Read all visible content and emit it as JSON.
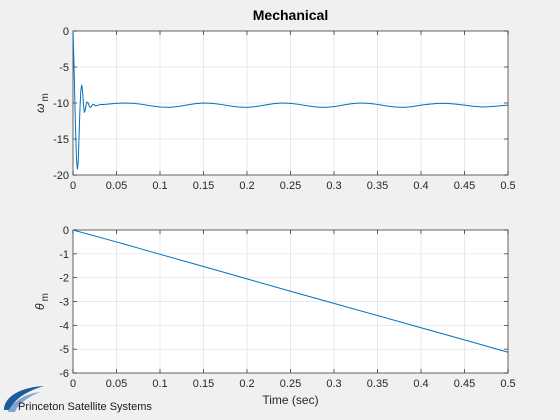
{
  "figure": {
    "background": "#f0f0f0",
    "axes_background": "#ffffff",
    "line_color": "#0072bd",
    "grid_color": "#e0e0e0",
    "logo_text": "Princeton Satellite Systems",
    "logo_color": "#1d5b99"
  },
  "chart_data": [
    {
      "type": "line",
      "title": "Mechanical",
      "xlabel": "",
      "ylabel": "ω",
      "ylabel_sub": "m",
      "xlim": [
        0,
        0.5
      ],
      "ylim": [
        -20,
        0
      ],
      "xticks": [
        0,
        0.05,
        0.1,
        0.15,
        0.2,
        0.25,
        0.3,
        0.35,
        0.4,
        0.45,
        0.5
      ],
      "xtick_labels": [
        "0",
        "0.05",
        "0.1",
        "0.15",
        "0.2",
        "0.25",
        "0.3",
        "0.35",
        "0.4",
        "0.45",
        "0.5"
      ],
      "yticks": [
        0,
        -5,
        -10,
        -15,
        -20
      ],
      "ytick_labels": [
        "0",
        "-5",
        "-10",
        "-15",
        "-20"
      ],
      "grid": true,
      "series": [
        {
          "x": [
            0,
            0.001,
            0.002,
            0.003,
            0.004,
            0.005,
            0.006,
            0.007,
            0.008,
            0.009,
            0.01,
            0.011,
            0.012,
            0.013,
            0.014,
            0.015,
            0.016,
            0.017,
            0.018,
            0.019,
            0.02,
            0.021,
            0.022,
            0.023,
            0.024,
            0.025,
            0.026,
            0.028,
            0.03,
            0.033,
            0.036,
            0.04,
            0.05,
            0.06,
            0.07,
            0.08,
            0.09,
            0.1,
            0.11,
            0.12,
            0.13,
            0.14,
            0.15,
            0.16,
            0.17,
            0.18,
            0.19,
            0.2,
            0.21,
            0.22,
            0.23,
            0.24,
            0.25,
            0.26,
            0.27,
            0.28,
            0.29,
            0.3,
            0.31,
            0.32,
            0.33,
            0.34,
            0.35,
            0.36,
            0.37,
            0.38,
            0.39,
            0.4,
            0.41,
            0.42,
            0.43,
            0.44,
            0.45,
            0.46,
            0.47,
            0.48,
            0.49,
            0.5
          ],
          "y": [
            0,
            -4,
            -9,
            -14,
            -17.8,
            -19.2,
            -18.2,
            -14.5,
            -10.8,
            -8.2,
            -7.5,
            -8.3,
            -10.2,
            -11.3,
            -11.0,
            -10.3,
            -9.9,
            -9.9,
            -10.2,
            -10.5,
            -10.6,
            -10.5,
            -10.3,
            -10.2,
            -10.2,
            -10.3,
            -10.4,
            -10.35,
            -10.25,
            -10.2,
            -10.2,
            -10.15,
            -10.05,
            -10.0,
            -10.05,
            -10.2,
            -10.4,
            -10.55,
            -10.6,
            -10.5,
            -10.3,
            -10.1,
            -10.0,
            -10.05,
            -10.2,
            -10.4,
            -10.55,
            -10.6,
            -10.5,
            -10.3,
            -10.1,
            -10.0,
            -10.05,
            -10.2,
            -10.4,
            -10.55,
            -10.6,
            -10.5,
            -10.3,
            -10.1,
            -10.0,
            -10.05,
            -10.2,
            -10.4,
            -10.55,
            -10.6,
            -10.5,
            -10.3,
            -10.15,
            -10.05,
            -10.05,
            -10.15,
            -10.3,
            -10.45,
            -10.55,
            -10.5,
            -10.4,
            -10.3
          ]
        }
      ]
    },
    {
      "type": "line",
      "title": "",
      "xlabel": "Time (sec)",
      "ylabel": "θ",
      "ylabel_sub": "m",
      "xlim": [
        0,
        0.5
      ],
      "ylim": [
        -6,
        0
      ],
      "xticks": [
        0,
        0.05,
        0.1,
        0.15,
        0.2,
        0.25,
        0.3,
        0.35,
        0.4,
        0.45,
        0.5
      ],
      "xtick_labels": [
        "0",
        "0.05",
        "0.1",
        "0.15",
        "0.2",
        "0.25",
        "0.3",
        "0.35",
        "0.4",
        "0.45",
        "0.5"
      ],
      "yticks": [
        0,
        -1,
        -2,
        -3,
        -4,
        -5,
        -6
      ],
      "ytick_labels": [
        "0",
        "-1",
        "-2",
        "-3",
        "-4",
        "-5",
        "-6"
      ],
      "grid": true,
      "series": [
        {
          "x": [
            0,
            0.05,
            0.1,
            0.15,
            0.2,
            0.25,
            0.3,
            0.35,
            0.4,
            0.45,
            0.5
          ],
          "y": [
            0,
            -0.5,
            -1.02,
            -1.53,
            -2.05,
            -2.57,
            -3.08,
            -3.59,
            -4.1,
            -4.61,
            -5.13
          ]
        }
      ]
    }
  ]
}
